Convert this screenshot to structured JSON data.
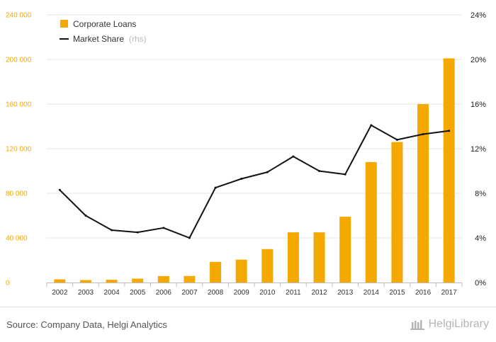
{
  "chart_data": {
    "type": "bar",
    "categories": [
      "2002",
      "2003",
      "2004",
      "2005",
      "2006",
      "2007",
      "2008",
      "2009",
      "2010",
      "2011",
      "2012",
      "2013",
      "2014",
      "2015",
      "2016",
      "2017"
    ],
    "series": [
      {
        "name": "Corporate Loans",
        "type": "bar",
        "axis": "left",
        "color": "#f5a800",
        "values": [
          2800,
          2200,
          2500,
          3500,
          5800,
          5900,
          18500,
          20500,
          30000,
          45000,
          45000,
          59000,
          108000,
          126000,
          160000,
          201000
        ]
      },
      {
        "name": "Market Share",
        "type": "line",
        "axis": "right",
        "color": "#111111",
        "values": [
          8.3,
          6.0,
          4.7,
          4.5,
          4.9,
          4.0,
          8.5,
          9.3,
          9.9,
          11.3,
          10.0,
          9.7,
          14.1,
          12.8,
          13.3,
          13.6
        ]
      }
    ],
    "left_axis": {
      "ylim": [
        0,
        240000
      ],
      "ticks": [
        "0",
        "40 000",
        "80 000",
        "120 000",
        "160 000",
        "200 000",
        "240 000"
      ]
    },
    "right_axis": {
      "ylim": [
        0,
        24
      ],
      "ticks": [
        "0%",
        "4%",
        "8%",
        "12%",
        "16%",
        "20%",
        "24%"
      ]
    },
    "legend": {
      "position": "top-left",
      "items": [
        {
          "label": "Corporate Loans",
          "suffix": "",
          "marker": "square"
        },
        {
          "label": "Market Share",
          "suffix": "(rhs)",
          "marker": "line"
        }
      ]
    },
    "grid": true,
    "title": "",
    "xlabel": "",
    "ylabel": ""
  },
  "footer": {
    "source": "Source: Company Data, Helgi Analytics",
    "brand": "HelgiLibrary"
  }
}
